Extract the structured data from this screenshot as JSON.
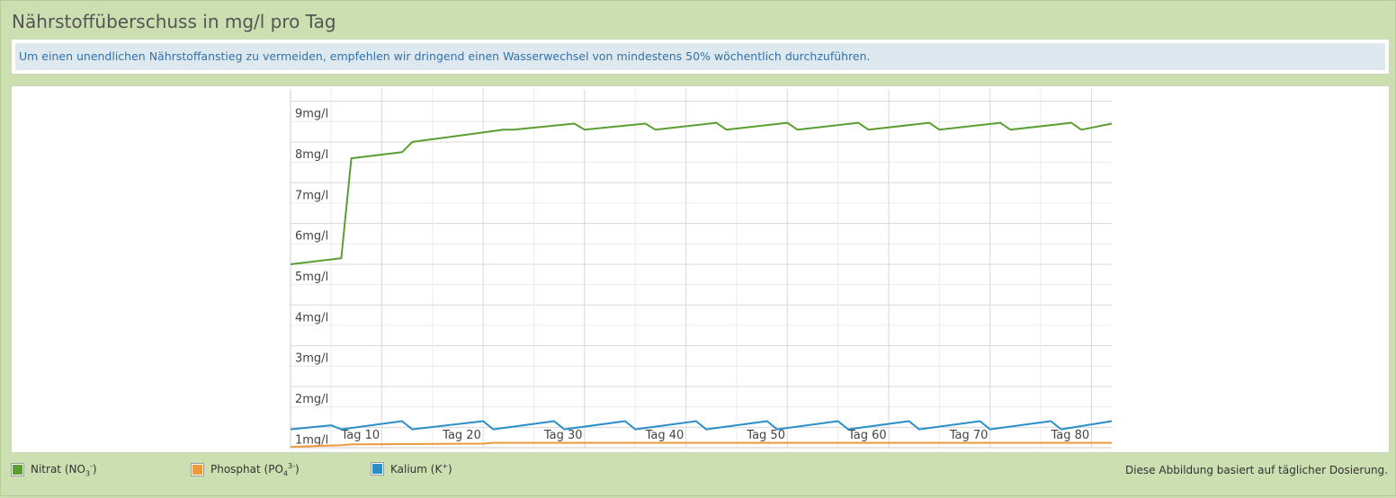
{
  "header": {
    "title": "Nährstoffüberschuss in mg/l pro Tag"
  },
  "info": {
    "text": "Um einen unendlichen Nährstoffanstieg zu vermeiden, empfehlen wir dringend einen Wasserwechsel von mindestens 50% wöchentlich durchzuführen."
  },
  "legend": {
    "nitrat": {
      "label": "Nitrat (NO",
      "sub": "3",
      "sup": "-",
      "end": ")",
      "color": "#5a9e32"
    },
    "phosphat": {
      "label": "Phosphat (PO",
      "sub": "4",
      "sup": "3-",
      "end": ")",
      "color": "#ee9a3c"
    },
    "kalium": {
      "label": "Kalium (K",
      "sup": "+",
      "end": ")",
      "color": "#2a8fc9"
    }
  },
  "footnote": "Diese Abbildung basiert auf täglicher Dosierung.",
  "chart_data": {
    "type": "line",
    "xlim": [
      1,
      82
    ],
    "ylim": [
      0.5,
      9.3
    ],
    "y_ticks": [
      1,
      2,
      3,
      4,
      5,
      6,
      7,
      8,
      9
    ],
    "y_tick_labels": [
      "1mg/l",
      "2mg/l",
      "3mg/l",
      "4mg/l",
      "5mg/l",
      "6mg/l",
      "7mg/l",
      "8mg/l",
      "9mg/l"
    ],
    "x_ticks": [
      10,
      20,
      30,
      40,
      50,
      60,
      70,
      80
    ],
    "x_tick_labels": [
      "Tag 10",
      "Tag 20",
      "Tag 30",
      "Tag 40",
      "Tag 50",
      "Tag 60",
      "Tag 70",
      "Tag 80"
    ],
    "grid": true,
    "series": [
      {
        "name": "Nitrat",
        "color": "#5a9e32",
        "x": [
          1,
          6,
          7,
          12,
          13,
          22,
          23,
          29,
          30,
          36,
          37,
          43,
          44,
          50,
          51,
          57,
          58,
          64,
          65,
          71,
          72,
          78,
          79,
          82
        ],
        "y": [
          5.0,
          5.15,
          7.6,
          7.75,
          8.0,
          8.3,
          8.3,
          8.45,
          8.3,
          8.45,
          8.3,
          8.47,
          8.3,
          8.47,
          8.3,
          8.47,
          8.3,
          8.47,
          8.3,
          8.47,
          8.3,
          8.47,
          8.3,
          8.45
        ]
      },
      {
        "name": "Phosphat",
        "color": "#ee9a3c",
        "x": [
          1,
          6,
          7,
          20,
          21,
          82
        ],
        "y": [
          0.52,
          0.56,
          0.58,
          0.6,
          0.62,
          0.62
        ]
      },
      {
        "name": "Kalium",
        "color": "#2a8fc9",
        "x": [
          1,
          5,
          6,
          12,
          13,
          20,
          21,
          27,
          28,
          34,
          35,
          41,
          42,
          48,
          49,
          55,
          56,
          62,
          63,
          69,
          70,
          76,
          77,
          82
        ],
        "y": [
          0.95,
          1.05,
          0.95,
          1.15,
          0.95,
          1.15,
          0.95,
          1.15,
          0.95,
          1.15,
          0.95,
          1.15,
          0.95,
          1.15,
          0.95,
          1.15,
          0.95,
          1.15,
          0.95,
          1.15,
          0.95,
          1.15,
          0.95,
          1.15
        ]
      }
    ]
  }
}
